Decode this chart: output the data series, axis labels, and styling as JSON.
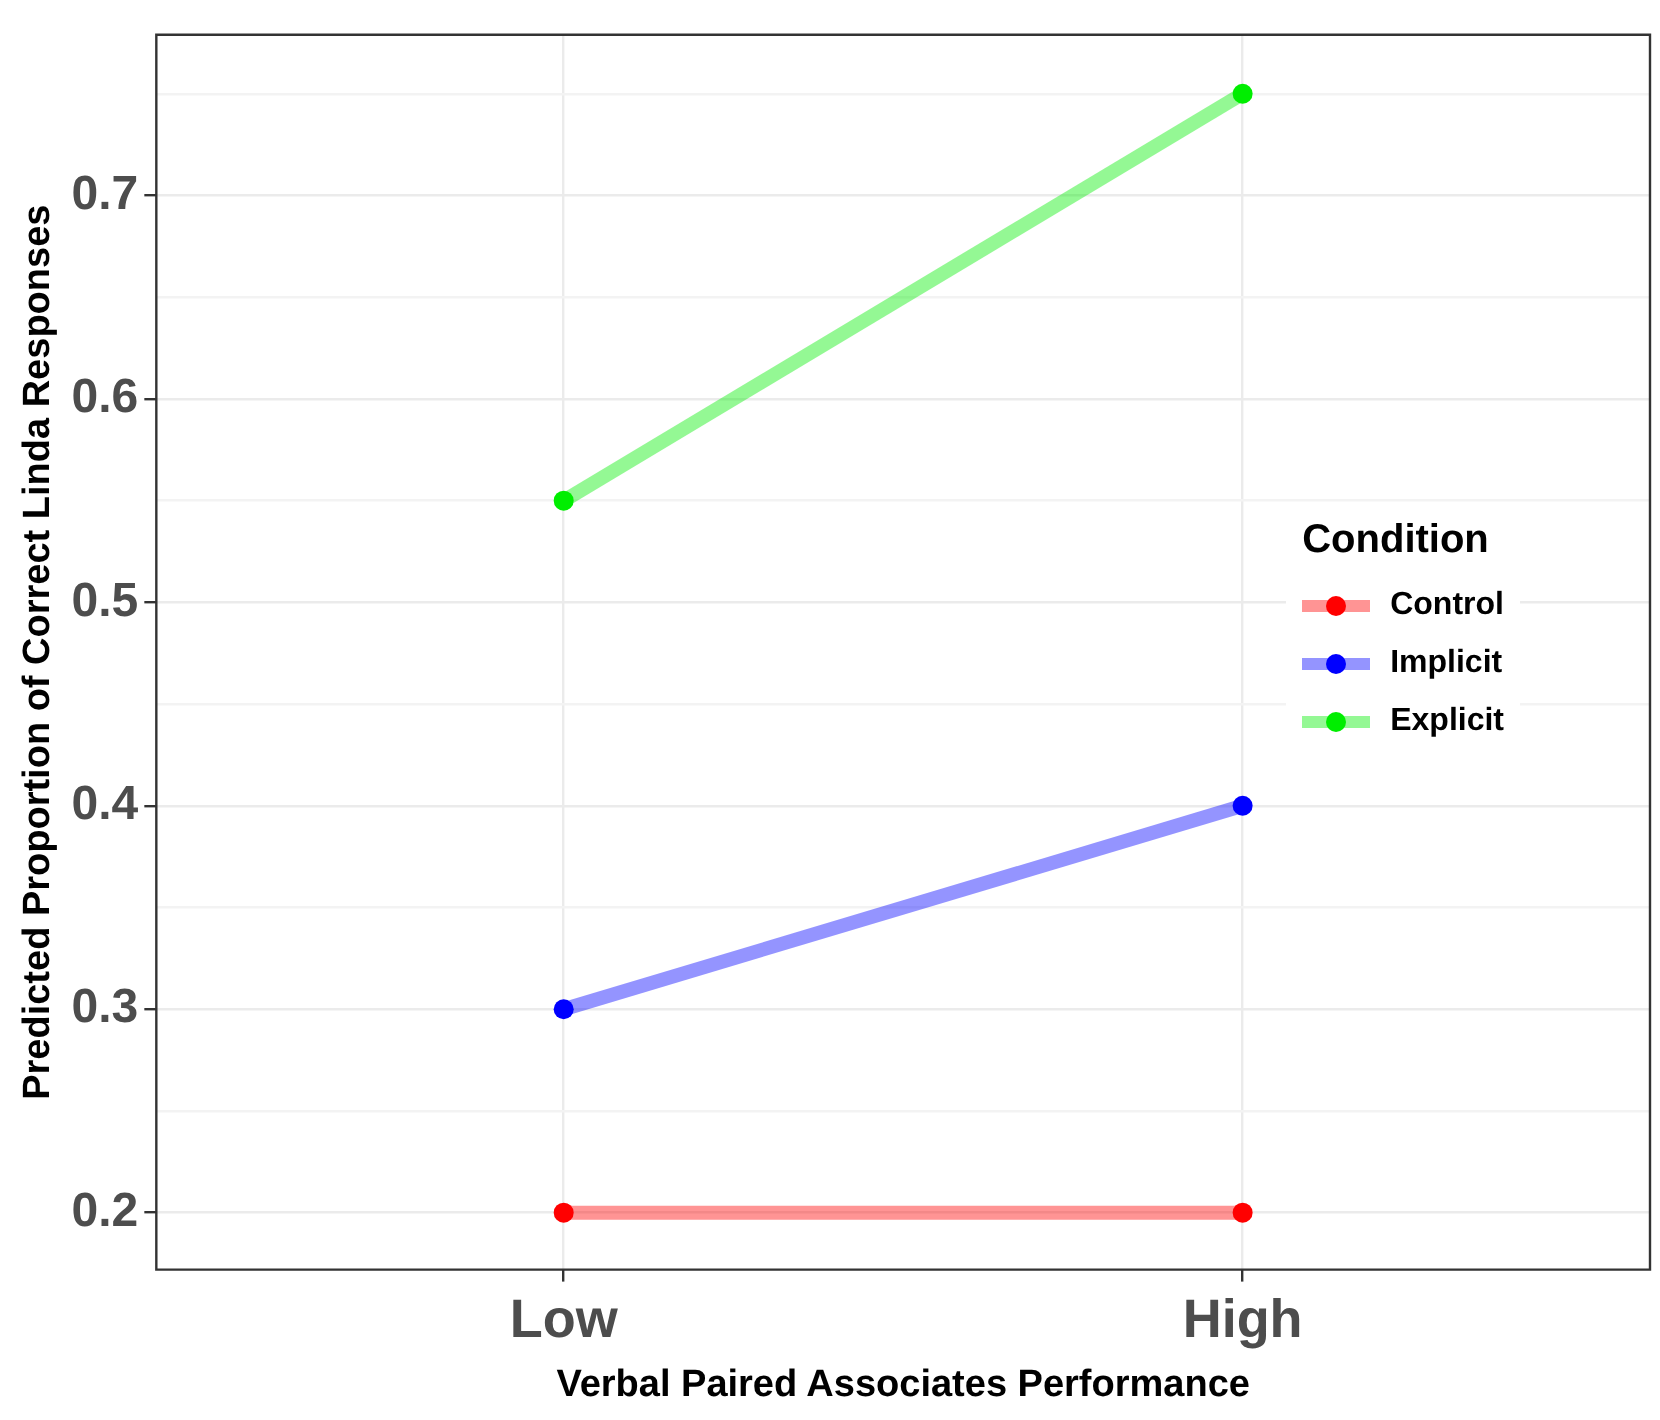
{
  "chart_data": {
    "type": "line",
    "xlabel": "Verbal Paired Associates Performance",
    "ylabel": "Predicted Proportion of Correct Linda Responses",
    "legend_title": "Condition",
    "categories": [
      "Low",
      "High"
    ],
    "series": [
      {
        "name": "Control",
        "color": "#ff0000",
        "values": [
          0.2,
          0.2
        ]
      },
      {
        "name": "Implicit",
        "color": "#0000ff",
        "values": [
          0.3,
          0.4
        ]
      },
      {
        "name": "Explicit",
        "color": "#00ee00",
        "values": [
          0.55,
          0.75
        ]
      }
    ],
    "ylim": [
      0.172,
      0.779
    ],
    "yticks": [
      0.2,
      {
        "value": 0.25,
        "label": null
      },
      0.3,
      {
        "value": 0.35,
        "label": null
      },
      0.4,
      {
        "value": 0.45,
        "label": null
      },
      0.5,
      {
        "value": 0.55,
        "label": null
      },
      0.6,
      {
        "value": 0.65,
        "label": null
      },
      0.7,
      {
        "value": 0.75,
        "label": null
      }
    ],
    "grid": true,
    "legend": "right",
    "marker": "circle",
    "line_style": "solid"
  }
}
